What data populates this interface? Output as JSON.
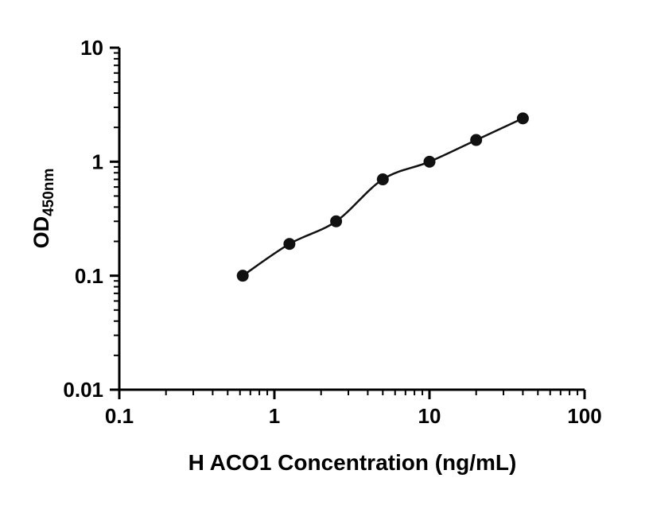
{
  "chart_data": {
    "type": "scatter",
    "title": "",
    "xlabel": "H ACO1 Concentration (ng/mL)",
    "ylabel_base": "OD",
    "ylabel_sub": "450nm",
    "xscale": "log",
    "yscale": "log",
    "xlim": [
      0.1,
      100
    ],
    "ylim": [
      0.01,
      10
    ],
    "x_ticks": [
      0.1,
      1,
      10,
      100
    ],
    "x_tick_labels": [
      "0.1",
      "1",
      "10",
      "100"
    ],
    "y_ticks": [
      0.01,
      0.1,
      1,
      10
    ],
    "y_tick_labels": [
      "0.01",
      "0.1",
      "1",
      "10"
    ],
    "grid": false,
    "legend": "none",
    "marker_color": "#111111",
    "line_color": "#111111",
    "x": [
      0.625,
      1.25,
      2.5,
      5,
      10,
      20,
      40
    ],
    "y": [
      0.1,
      0.19,
      0.3,
      0.7,
      1.0,
      1.55,
      2.4
    ]
  }
}
